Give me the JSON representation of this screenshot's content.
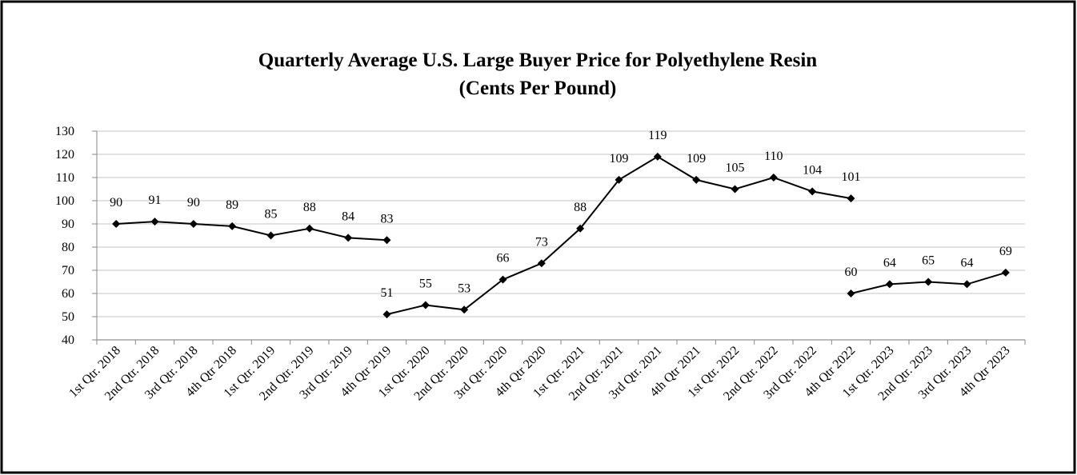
{
  "chart_data": {
    "type": "line",
    "title": [
      "Quarterly Average U.S. Large Buyer Price for Polyethylene Resin",
      "(Cents Per Pound)"
    ],
    "categories": [
      "1st Qtr. 2018",
      "2nd Qtr. 2018",
      "3rd Qtr. 2018",
      "4th Qtr 2018",
      "1st Qtr. 2019",
      "2nd Qtr. 2019",
      "3rd Qtr. 2019",
      "4th Qtr 2019",
      "1st Qtr. 2020",
      "2nd Qtr. 2020",
      "3rd Qtr. 2020",
      "4th Qtr 2020",
      "1st Qtr. 2021",
      "2nd Qtr. 2021",
      "3rd Qtr. 2021",
      "4th Qtr 2021",
      "1st Qtr. 2022",
      "2nd Qtr. 2022",
      "3rd Qtr. 2022",
      "4th Qtr 2022",
      "1st Qtr. 2023",
      "2nd Qtr. 2023",
      "3rd Qtr. 2023",
      "4th Qtr 2023"
    ],
    "series": [
      {
        "color": "#000000",
        "values": [
          90,
          91,
          90,
          89,
          85,
          88,
          84,
          83,
          null,
          null,
          null,
          null,
          null,
          null,
          null,
          null,
          null,
          null,
          null,
          null,
          null,
          null,
          null,
          null
        ]
      },
      {
        "color": "#000000",
        "values": [
          null,
          null,
          null,
          null,
          null,
          null,
          null,
          51,
          55,
          53,
          66,
          73,
          88,
          109,
          119,
          109,
          105,
          110,
          104,
          101,
          null,
          null,
          null,
          null
        ]
      },
      {
        "color": "#000000",
        "values": [
          null,
          null,
          null,
          null,
          null,
          null,
          null,
          null,
          null,
          null,
          null,
          null,
          null,
          null,
          null,
          null,
          null,
          null,
          null,
          60,
          64,
          65,
          64,
          69
        ]
      }
    ],
    "ylim": [
      40,
      130
    ],
    "yticks": [
      40,
      50,
      60,
      70,
      80,
      90,
      100,
      110,
      120,
      130
    ],
    "grid": true
  }
}
